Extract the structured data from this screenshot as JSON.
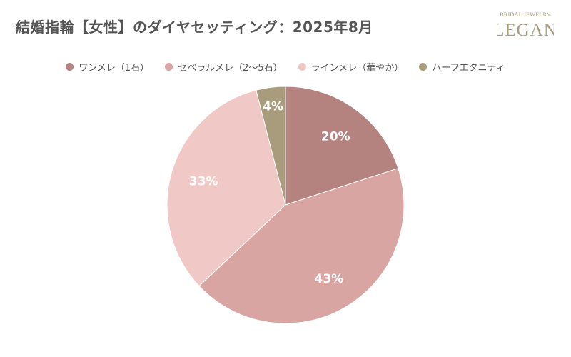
{
  "title": "結婚指輪【女性】のダイヤセッティング：2025年8月",
  "brand": {
    "top_text": "BRIDAL JEWELRY",
    "name": "LEGAN"
  },
  "chart_data": {
    "type": "pie",
    "title": "結婚指輪【女性】のダイヤセッティング：2025年8月",
    "legend_position": "top",
    "categories": [
      "ワンメレ（1石）",
      "セベラルメレ（2〜5石）",
      "ラインメレ（華やか）",
      "ハーフエタニティ"
    ],
    "values": [
      20,
      43,
      33,
      4
    ],
    "labels": [
      "20%",
      "43%",
      "33%",
      "4%"
    ],
    "colors": [
      "#b5837f",
      "#d9a5a3",
      "#f0c8c6",
      "#a89c7c"
    ]
  }
}
